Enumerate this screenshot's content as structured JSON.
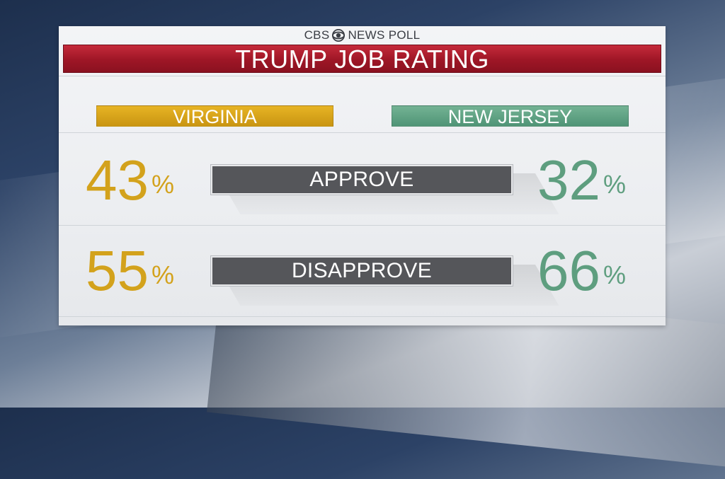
{
  "brand": {
    "left": "CBS",
    "right": "NEWS POLL",
    "icon": "cbs-eye-icon"
  },
  "title": "TRUMP JOB RATING",
  "colors": {
    "title": "#a81b2c",
    "virginia": "#d3a21c",
    "new_jersey": "#5e9e7f",
    "category_bar": "#55565a"
  },
  "percent_symbol": "%",
  "chart_data": {
    "type": "table",
    "title": "TRUMP JOB RATING",
    "columns": [
      "VIRGINIA",
      "NEW JERSEY"
    ],
    "rows": [
      {
        "category": "APPROVE",
        "values": [
          "43",
          "32"
        ]
      },
      {
        "category": "DISAPPROVE",
        "values": [
          "55",
          "66"
        ]
      }
    ]
  }
}
